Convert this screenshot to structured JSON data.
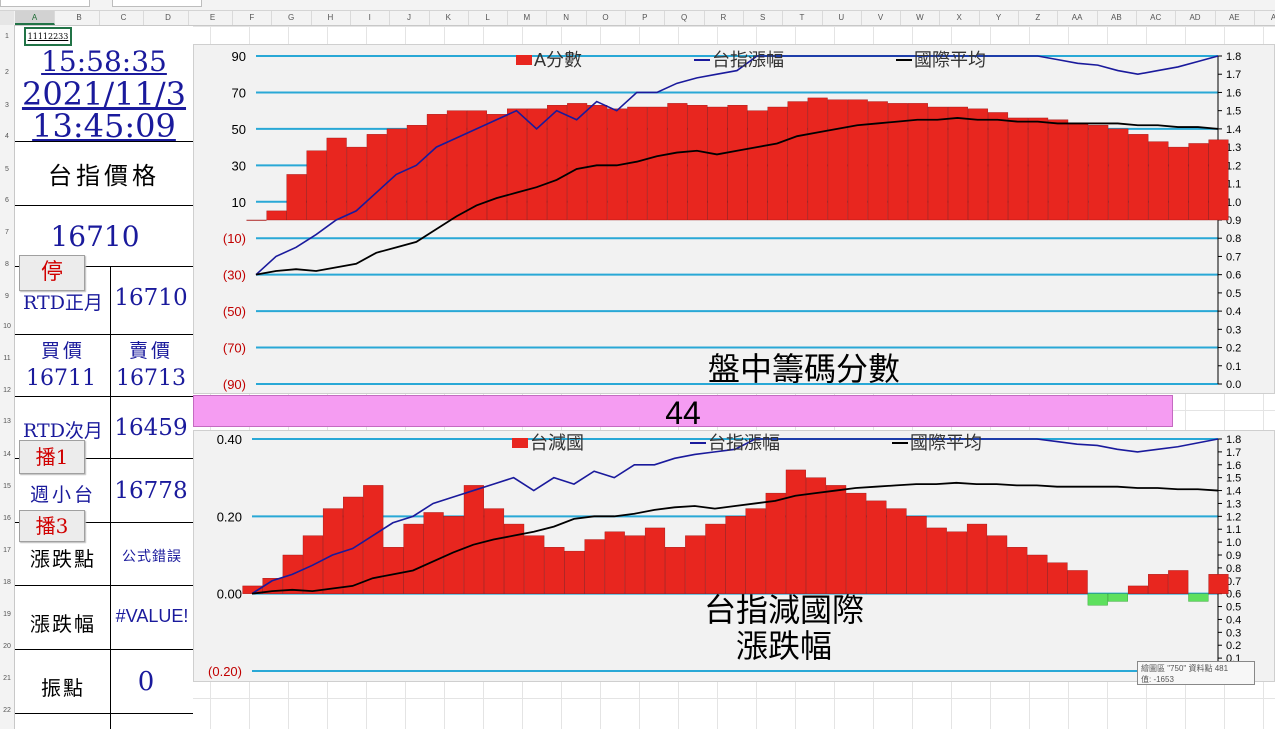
{
  "cell_ref": "A1",
  "a1_value": "11112233",
  "columns": [
    "A",
    "B",
    "C",
    "D",
    "E",
    "F",
    "G",
    "H",
    "I",
    "J",
    "K",
    "L",
    "M",
    "N",
    "O",
    "P",
    "Q",
    "R",
    "S",
    "T",
    "U",
    "V",
    "W",
    "X",
    "Y",
    "Z",
    "AA",
    "AB",
    "AC",
    "AD",
    "AE",
    "A"
  ],
  "rows": [
    "1",
    "2",
    "3",
    "4",
    "5",
    "6",
    "7",
    "8",
    "9",
    "10",
    "11",
    "12",
    "13",
    "14",
    "15",
    "16",
    "17",
    "18",
    "19",
    "20",
    "21",
    "22"
  ],
  "panel": {
    "time_now": "15:58:35",
    "date": "2021/11/3",
    "time_data": "13:45:09",
    "price_title": "台指價格",
    "price_value": "16710",
    "btn_stop": "停",
    "rtd_near_label": "RTD正月",
    "rtd_near_value": "16710",
    "bid_label": "買價",
    "ask_label": "賣價",
    "bid_value": "16711",
    "ask_value": "16713",
    "rtd_next_label": "RTD次月",
    "rtd_next_value": "16459",
    "btn_play1": "播1",
    "weekly_label": "週小台",
    "weekly_value": "16778",
    "btn_play3": "播3",
    "change_pts_label": "漲跌點",
    "change_pts_value": "公式錯誤",
    "change_pct_label": "漲跌幅",
    "change_pct_value": "#VALUE!",
    "amplitude_label": "振點",
    "amplitude_value": "0"
  },
  "score_value": "44",
  "tooltip": {
    "line1": "繪圖區 \"750\" 資料點 481",
    "line2": "值: -1653"
  },
  "colors": {
    "bar_red": "#e8261f",
    "line_blue": "#1a1a9c",
    "line_black": "#000000",
    "negative_green": "#5ee05e",
    "gridline": "#29a8d6",
    "pink": "#f59cf2",
    "neg_label": "#c00000"
  },
  "chart_data": [
    {
      "type": "bar",
      "title": "盤中籌碼分數",
      "legend": [
        "A分數",
        "台指漲幅",
        "國際平均"
      ],
      "legend_position": "top",
      "y_left_ticks": [
        "90",
        "70",
        "50",
        "30",
        "10",
        "(10)",
        "(30)",
        "(50)",
        "(70)",
        "(90)"
      ],
      "y_left_range": [
        -90,
        90
      ],
      "y_right_ticks": [
        "1.8",
        "1.7",
        "1.6",
        "1.5",
        "1.4",
        "1.3",
        "1.2",
        "1.1",
        "1.0",
        "0.9",
        "0.8",
        "0.7",
        "0.6",
        "0.5",
        "0.4",
        "0.3",
        "0.2",
        "0.1",
        "0.0"
      ],
      "y_right_range": [
        0.0,
        1.8
      ],
      "grid": true,
      "series": [
        {
          "name": "A分數",
          "kind": "bar",
          "x": [
            0,
            10,
            20,
            30,
            40,
            50,
            60,
            70,
            80,
            90,
            100,
            110,
            120,
            130,
            140,
            150,
            160,
            170,
            180,
            190,
            200,
            210,
            220,
            230,
            240,
            250,
            260,
            270,
            280,
            290,
            300,
            310,
            320,
            330,
            340,
            350,
            360,
            370,
            380,
            390,
            400,
            410,
            420,
            430,
            440,
            450,
            460,
            470,
            480
          ],
          "values": [
            0,
            5,
            25,
            38,
            45,
            40,
            47,
            50,
            52,
            58,
            60,
            60,
            58,
            61,
            61,
            63,
            64,
            63,
            61,
            62,
            62,
            64,
            63,
            62,
            63,
            60,
            62,
            65,
            67,
            66,
            66,
            65,
            64,
            64,
            62,
            62,
            61,
            59,
            56,
            56,
            55,
            53,
            52,
            50,
            47,
            43,
            40,
            42,
            44
          ]
        },
        {
          "name": "台指漲幅",
          "kind": "line",
          "x": [
            0,
            10,
            20,
            30,
            40,
            50,
            60,
            70,
            80,
            90,
            100,
            110,
            120,
            130,
            140,
            150,
            160,
            170,
            180,
            190,
            200,
            210,
            220,
            230,
            240,
            250,
            260,
            270,
            280,
            290,
            300,
            310,
            320,
            330,
            340,
            350,
            360,
            370,
            380,
            390,
            400,
            410,
            420,
            430,
            440,
            450,
            460,
            470,
            480
          ],
          "values": [
            0.6,
            0.7,
            0.75,
            0.82,
            0.9,
            0.95,
            1.05,
            1.15,
            1.2,
            1.3,
            1.35,
            1.4,
            1.45,
            1.5,
            1.4,
            1.5,
            1.45,
            1.55,
            1.5,
            1.6,
            1.6,
            1.65,
            1.68,
            1.7,
            1.72,
            1.8,
            1.82,
            1.88,
            1.95,
            2.0,
            2.0,
            1.98,
            1.96,
            1.93,
            1.92,
            1.9,
            1.88,
            1.85,
            1.82,
            1.8,
            1.78,
            1.76,
            1.75,
            1.72,
            1.7,
            1.72,
            1.74,
            1.77,
            1.82
          ]
        },
        {
          "name": "國際平均",
          "kind": "line",
          "x": [
            0,
            10,
            20,
            30,
            40,
            50,
            60,
            70,
            80,
            90,
            100,
            110,
            120,
            130,
            140,
            150,
            160,
            170,
            180,
            190,
            200,
            210,
            220,
            230,
            240,
            250,
            260,
            270,
            280,
            290,
            300,
            310,
            320,
            330,
            340,
            350,
            360,
            370,
            380,
            390,
            400,
            410,
            420,
            430,
            440,
            450,
            460,
            470,
            480
          ],
          "values": [
            0.6,
            0.62,
            0.63,
            0.62,
            0.64,
            0.66,
            0.72,
            0.75,
            0.78,
            0.85,
            0.92,
            0.98,
            1.02,
            1.05,
            1.08,
            1.12,
            1.18,
            1.2,
            1.2,
            1.22,
            1.25,
            1.27,
            1.28,
            1.26,
            1.28,
            1.3,
            1.32,
            1.36,
            1.38,
            1.4,
            1.42,
            1.43,
            1.44,
            1.45,
            1.45,
            1.46,
            1.45,
            1.45,
            1.44,
            1.44,
            1.43,
            1.43,
            1.43,
            1.43,
            1.42,
            1.42,
            1.41,
            1.41,
            1.4
          ]
        }
      ]
    },
    {
      "type": "bar",
      "title": "台指減國際 漲跌幅",
      "legend": [
        "台減國",
        "台指漲幅",
        "國際平均"
      ],
      "legend_position": "top",
      "y_left_ticks": [
        "0.40",
        "0.20",
        "0.00",
        "(0.20)"
      ],
      "y_left_range": [
        -0.2,
        0.4
      ],
      "y_right_ticks": [
        "1.8",
        "1.7",
        "1.6",
        "1.5",
        "1.4",
        "1.3",
        "1.2",
        "1.1",
        "1.0",
        "0.9",
        "0.8",
        "0.7",
        "0.6",
        "0.5",
        "0.4",
        "0.3",
        "0.2",
        "0.1",
        "0.0"
      ],
      "y_right_range": [
        0.0,
        1.8
      ],
      "grid": true,
      "series": [
        {
          "name": "台減國",
          "kind": "bar",
          "x": [
            0,
            10,
            20,
            30,
            40,
            50,
            60,
            70,
            80,
            90,
            100,
            110,
            120,
            130,
            140,
            150,
            160,
            170,
            180,
            190,
            200,
            210,
            220,
            230,
            240,
            250,
            260,
            270,
            280,
            290,
            300,
            310,
            320,
            330,
            340,
            350,
            360,
            370,
            380,
            390,
            400,
            410,
            420,
            430,
            440,
            450,
            460,
            470,
            480
          ],
          "values": [
            0.02,
            0.04,
            0.1,
            0.15,
            0.22,
            0.25,
            0.28,
            0.12,
            0.18,
            0.21,
            0.2,
            0.28,
            0.22,
            0.18,
            0.15,
            0.12,
            0.11,
            0.14,
            0.16,
            0.15,
            0.17,
            0.12,
            0.15,
            0.18,
            0.2,
            0.22,
            0.26,
            0.32,
            0.3,
            0.28,
            0.26,
            0.24,
            0.22,
            0.2,
            0.17,
            0.16,
            0.18,
            0.15,
            0.12,
            0.1,
            0.08,
            0.06,
            -0.03,
            -0.02,
            0.02,
            0.05,
            0.06,
            -0.02,
            0.05
          ]
        },
        {
          "name": "台指漲幅",
          "kind": "line",
          "x": [
            0,
            10,
            20,
            30,
            40,
            50,
            60,
            70,
            80,
            90,
            100,
            110,
            120,
            130,
            140,
            150,
            160,
            170,
            180,
            190,
            200,
            210,
            220,
            230,
            240,
            250,
            260,
            270,
            280,
            290,
            300,
            310,
            320,
            330,
            340,
            350,
            360,
            370,
            380,
            390,
            400,
            410,
            420,
            430,
            440,
            450,
            460,
            470,
            480
          ],
          "values": [
            0.6,
            0.7,
            0.75,
            0.82,
            0.9,
            0.95,
            1.05,
            1.15,
            1.2,
            1.3,
            1.35,
            1.4,
            1.45,
            1.5,
            1.4,
            1.5,
            1.45,
            1.55,
            1.5,
            1.6,
            1.6,
            1.65,
            1.68,
            1.7,
            1.72,
            1.8,
            1.82,
            1.88,
            1.95,
            2.0,
            2.0,
            1.98,
            1.96,
            1.93,
            1.92,
            1.9,
            1.88,
            1.85,
            1.82,
            1.8,
            1.78,
            1.76,
            1.75,
            1.72,
            1.7,
            1.72,
            1.74,
            1.77,
            1.82
          ]
        },
        {
          "name": "國際平均",
          "kind": "line",
          "x": [
            0,
            10,
            20,
            30,
            40,
            50,
            60,
            70,
            80,
            90,
            100,
            110,
            120,
            130,
            140,
            150,
            160,
            170,
            180,
            190,
            200,
            210,
            220,
            230,
            240,
            250,
            260,
            270,
            280,
            290,
            300,
            310,
            320,
            330,
            340,
            350,
            360,
            370,
            380,
            390,
            400,
            410,
            420,
            430,
            440,
            450,
            460,
            470,
            480
          ],
          "values": [
            0.6,
            0.62,
            0.63,
            0.62,
            0.64,
            0.66,
            0.72,
            0.75,
            0.78,
            0.85,
            0.92,
            0.98,
            1.02,
            1.05,
            1.08,
            1.12,
            1.18,
            1.2,
            1.2,
            1.22,
            1.25,
            1.27,
            1.28,
            1.26,
            1.28,
            1.3,
            1.32,
            1.36,
            1.38,
            1.4,
            1.42,
            1.43,
            1.44,
            1.45,
            1.45,
            1.46,
            1.45,
            1.45,
            1.44,
            1.44,
            1.43,
            1.43,
            1.43,
            1.43,
            1.42,
            1.42,
            1.41,
            1.41,
            1.4
          ]
        }
      ]
    }
  ]
}
